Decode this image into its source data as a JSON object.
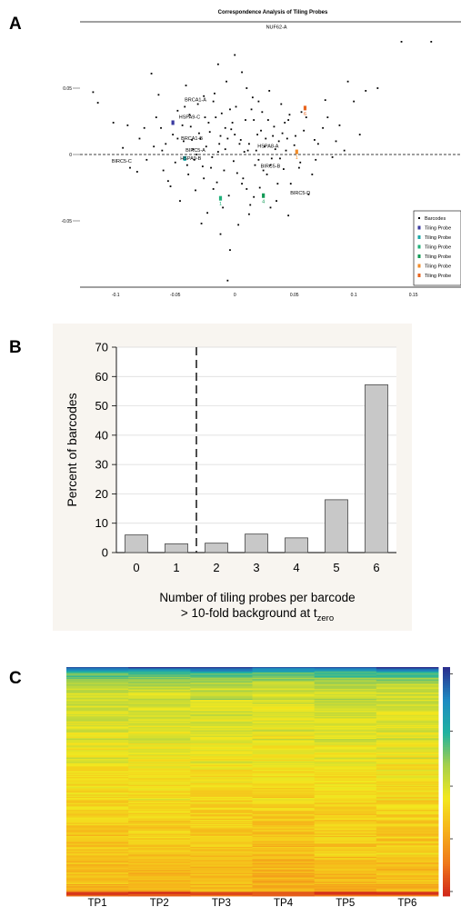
{
  "panels": {
    "a": "A",
    "b": "B",
    "c": "C"
  },
  "chart_data": [
    {
      "type": "scatter",
      "title": "Correspondence Analysis of Tiling Probes",
      "xlim": [
        -0.13,
        0.19
      ],
      "ylim": [
        -0.1,
        0.1
      ],
      "x_ticks": [
        "-0.1",
        "-0.05",
        "0",
        "0.05",
        "0.1",
        "0.15"
      ],
      "y_ticks": [
        "0.05",
        "0",
        "-0.05"
      ],
      "reference_line_y": 0,
      "legend": {
        "position": "bottom-right",
        "entries": [
          {
            "label": "Barcodes",
            "color": "#000000"
          },
          {
            "label": "Tiling Probe",
            "color": "#3a3aa0"
          },
          {
            "label": "Tiling Probe",
            "color": "#1aa8a8"
          },
          {
            "label": "Tiling Probe",
            "color": "#20b07a"
          },
          {
            "label": "Tiling Probe",
            "color": "#129a56"
          },
          {
            "label": "Tiling Probe",
            "color": "#f28c28"
          },
          {
            "label": "Tiling Probe",
            "color": "#e8641e"
          }
        ]
      },
      "annotations": [
        {
          "text": "NUF62-A",
          "x": 0.035,
          "y": 0.095
        },
        {
          "text": "BRCA1-A",
          "x": -0.033,
          "y": 0.04
        },
        {
          "text": "HSPA9-C",
          "x": -0.038,
          "y": 0.027
        },
        {
          "text": "BRCA1-B",
          "x": -0.036,
          "y": 0.011
        },
        {
          "text": "HSPA8-A",
          "x": 0.028,
          "y": 0.005
        },
        {
          "text": "BIRC5-A",
          "x": -0.033,
          "y": 0.002
        },
        {
          "text": "HSPA9-B",
          "x": -0.037,
          "y": -0.004
        },
        {
          "text": "BIRC5-C",
          "x": -0.095,
          "y": -0.006
        },
        {
          "text": "BIRC5-B",
          "x": 0.03,
          "y": -0.01
        },
        {
          "text": "BIRC5-D",
          "x": 0.055,
          "y": -0.03
        }
      ],
      "probe_points": [
        {
          "x": -0.052,
          "y": 0.024,
          "color": "#3a3aa0",
          "label": ""
        },
        {
          "x": -0.042,
          "y": -0.003,
          "color": "#1aa8a8",
          "label": ""
        },
        {
          "x": -0.012,
          "y": -0.033,
          "color": "#20b07a",
          "label": "1"
        },
        {
          "x": 0.024,
          "y": -0.031,
          "color": "#129a56",
          "label": "4"
        },
        {
          "x": 0.052,
          "y": 0.002,
          "color": "#f28c28",
          "label": "1"
        },
        {
          "x": 0.059,
          "y": 0.035,
          "color": "#e8641e",
          "label": "6"
        }
      ],
      "barcodes": [
        [
          -0.119,
          0.047
        ],
        [
          -0.115,
          0.039
        ],
        [
          -0.102,
          0.024
        ],
        [
          -0.094,
          0.005
        ],
        [
          -0.082,
          -0.013
        ],
        [
          -0.076,
          0.02
        ],
        [
          -0.07,
          0.061
        ],
        [
          -0.064,
          0.045
        ],
        [
          -0.061,
          0.003
        ],
        [
          -0.056,
          -0.02
        ],
        [
          -0.052,
          0.015
        ],
        [
          -0.05,
          -0.006
        ],
        [
          -0.048,
          0.033
        ],
        [
          -0.046,
          -0.035
        ],
        [
          -0.043,
          0.01
        ],
        [
          -0.041,
          0.052
        ],
        [
          -0.039,
          -0.015
        ],
        [
          -0.037,
          0.021
        ],
        [
          -0.035,
          0.004
        ],
        [
          -0.033,
          -0.027
        ],
        [
          -0.031,
          0.038
        ],
        [
          -0.029,
          0.012
        ],
        [
          -0.027,
          -0.009
        ],
        [
          -0.025,
          0.028
        ],
        [
          -0.023,
          -0.044
        ],
        [
          -0.021,
          0.017
        ],
        [
          -0.019,
          -0.002
        ],
        [
          -0.017,
          0.046
        ],
        [
          -0.015,
          -0.021
        ],
        [
          -0.013,
          0.008
        ],
        [
          -0.011,
          0.031
        ],
        [
          -0.009,
          -0.012
        ],
        [
          -0.007,
          0.055
        ],
        [
          -0.005,
          -0.031
        ],
        [
          -0.003,
          0.019
        ],
        [
          -0.001,
          -0.005
        ],
        [
          0.001,
          0.036
        ],
        [
          0.003,
          -0.053
        ],
        [
          0.005,
          0.011
        ],
        [
          0.007,
          -0.018
        ],
        [
          0.009,
          0.026
        ],
        [
          0.011,
          0.003
        ],
        [
          0.013,
          -0.038
        ],
        [
          0.015,
          0.043
        ],
        [
          0.017,
          -0.008
        ],
        [
          0.019,
          0.015
        ],
        [
          0.021,
          -0.025
        ],
        [
          0.023,
          0.032
        ],
        [
          0.025,
          0.006
        ],
        [
          0.027,
          -0.015
        ],
        [
          0.029,
          0.048
        ],
        [
          0.031,
          -0.003
        ],
        [
          0.033,
          0.021
        ],
        [
          0.035,
          -0.035
        ],
        [
          0.037,
          0.01
        ],
        [
          0.039,
          0.038
        ],
        [
          0.041,
          -0.011
        ],
        [
          0.043,
          0.003
        ],
        [
          0.045,
          0.026
        ],
        [
          0.047,
          -0.022
        ],
        [
          0.051,
          0.014
        ],
        [
          0.055,
          -0.006
        ],
        [
          0.06,
          0.028
        ],
        [
          0.065,
          -0.015
        ],
        [
          0.07,
          0.008
        ],
        [
          0.076,
          0.041
        ],
        [
          0.082,
          -0.002
        ],
        [
          0.088,
          0.022
        ],
        [
          0.095,
          0.055
        ],
        [
          0.11,
          0.048
        ],
        [
          0.12,
          0.05
        ],
        [
          0.14,
          0.085
        ],
        [
          0.165,
          0.085
        ],
        [
          -0.004,
          -0.072
        ],
        [
          -0.006,
          -0.095
        ],
        [
          0.0,
          0.075
        ],
        [
          -0.028,
          -0.052
        ],
        [
          0.012,
          -0.045
        ],
        [
          -0.058,
          0.008
        ],
        [
          0.067,
          0.011
        ],
        [
          -0.088,
          -0.01
        ],
        [
          0.006,
          0.062
        ],
        [
          -0.014,
          0.068
        ],
        [
          0.045,
          -0.046
        ],
        [
          -0.018,
          0.04
        ],
        [
          0.022,
          0.018
        ],
        [
          -0.036,
          0.011
        ],
        [
          0.03,
          -0.008
        ],
        [
          -0.008,
          0.004
        ],
        [
          0.016,
          0.026
        ],
        [
          -0.044,
          0.022
        ],
        [
          0.058,
          0.018
        ],
        [
          -0.02,
          -0.01
        ],
        [
          0.04,
          0.016
        ],
        [
          -0.032,
          0.0
        ],
        [
          0.008,
          0.002
        ],
        [
          -0.012,
          0.014
        ],
        [
          0.026,
          0.012
        ],
        [
          -0.024,
          0.006
        ],
        [
          0.034,
          0.004
        ],
        [
          -0.002,
          0.024
        ],
        [
          0.018,
          0.003
        ],
        [
          -0.016,
          0.028
        ],
        [
          0.01,
          -0.026
        ],
        [
          -0.026,
          -0.018
        ],
        [
          0.044,
          0.012
        ],
        [
          -0.04,
          -0.008
        ],
        [
          0.036,
          -0.022
        ],
        [
          0.002,
          -0.014
        ],
        [
          -0.038,
          0.03
        ],
        [
          0.05,
          0.007
        ],
        [
          -0.06,
          -0.012
        ],
        [
          0.014,
          0.034
        ],
        [
          -0.01,
          -0.04
        ],
        [
          0.062,
          -0.03
        ],
        [
          -0.066,
          0.028
        ],
        [
          0.074,
          0.02
        ],
        [
          -0.074,
          -0.004
        ],
        [
          0.085,
          0.01
        ],
        [
          -0.08,
          0.012
        ],
        [
          0.1,
          0.04
        ],
        [
          -0.09,
          0.022
        ],
        [
          0.004,
          0.008
        ],
        [
          -0.006,
          0.012
        ],
        [
          0.012,
          0.008
        ],
        [
          -0.014,
          0.002
        ],
        [
          0.02,
          -0.004
        ],
        [
          -0.022,
          0.024
        ],
        [
          0.028,
          0.026
        ],
        [
          -0.03,
          0.016
        ],
        [
          0.032,
          0.014
        ],
        [
          -0.034,
          -0.004
        ],
        [
          0.038,
          -0.003
        ],
        [
          0.024,
          -0.012
        ],
        [
          -0.018,
          -0.026
        ],
        [
          0.006,
          -0.022
        ],
        [
          -0.004,
          0.034
        ],
        [
          0.046,
          0.03
        ],
        [
          -0.048,
          0.012
        ],
        [
          0.054,
          -0.01
        ],
        [
          -0.054,
          -0.024
        ],
        [
          0.016,
          -0.032
        ],
        [
          -0.008,
          0.02
        ],
        [
          0.0,
          0.015
        ],
        [
          0.02,
          0.04
        ],
        [
          -0.026,
          0.044
        ],
        [
          0.042,
          0.024
        ],
        [
          -0.042,
          0.036
        ],
        [
          0.056,
          0.032
        ],
        [
          -0.062,
          0.02
        ],
        [
          0.068,
          -0.004
        ],
        [
          -0.068,
          0.006
        ],
        [
          0.078,
          0.028
        ],
        [
          0.092,
          0.003
        ],
        [
          0.105,
          0.015
        ],
        [
          0.01,
          0.05
        ],
        [
          -0.012,
          -0.06
        ],
        [
          0.03,
          -0.04
        ]
      ]
    },
    {
      "type": "bar",
      "categories": [
        "0",
        "1",
        "2",
        "3",
        "4",
        "5",
        "6"
      ],
      "values": [
        6,
        3,
        3.2,
        6.3,
        5,
        18,
        57.2
      ],
      "ylabel": "Percent of barcodes",
      "xlabel_line1": "Number of tiling probes per barcode",
      "xlabel_line2_prefix": "> 10-fold background at t",
      "xlabel_line2_subscript": "zero",
      "ylim": [
        0,
        70
      ],
      "y_ticks": [
        "0",
        "10",
        "20",
        "30",
        "40",
        "50",
        "60",
        "70"
      ],
      "divider_between": [
        "1",
        "2"
      ],
      "bar_color": "#c8c8c8"
    },
    {
      "type": "heatmap",
      "columns": [
        "TP1",
        "TP2",
        "TP3",
        "TP4",
        "TP5",
        "TP6"
      ],
      "colorscale": [
        "#2a2f8e",
        "#1e8bc3",
        "#20b2a0",
        "#a6d04a",
        "#f2e81f",
        "#f6b21a",
        "#ef7a1a",
        "#d22a1a"
      ]
    }
  ]
}
